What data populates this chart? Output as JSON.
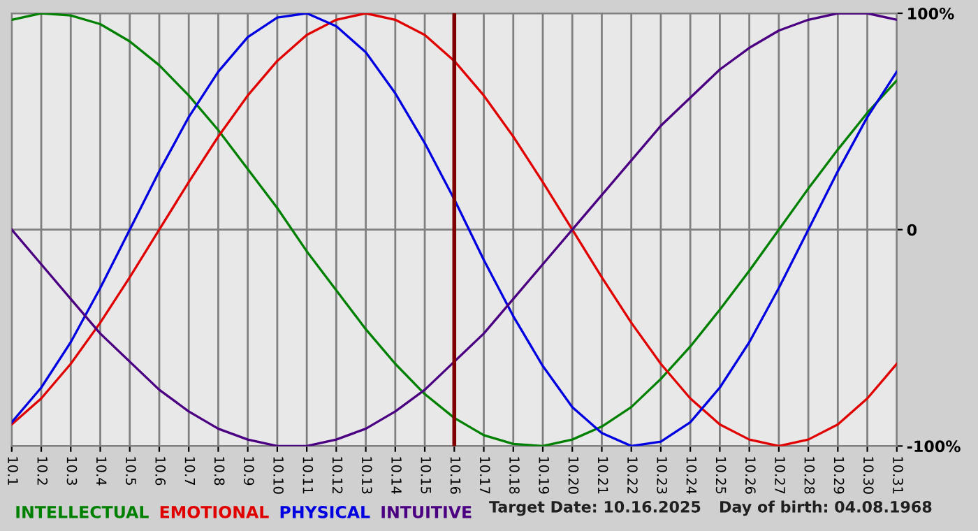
{
  "chart_data": {
    "type": "line",
    "categories": [
      "10.1",
      "10.2",
      "10.3",
      "10.4",
      "10.5",
      "10.6",
      "10.7",
      "10.8",
      "10.9",
      "10.10",
      "10.11",
      "10.12",
      "10.13",
      "10.14",
      "10.15",
      "10.16",
      "10.17",
      "10.18",
      "10.19",
      "10.20",
      "10.21",
      "10.22",
      "10.23",
      "10.24",
      "10.25",
      "10.26",
      "10.27",
      "10.28",
      "10.29",
      "10.30",
      "10.31"
    ],
    "series": [
      {
        "name": "INTELLECTUAL",
        "color": "#008000",
        "values": [
          97,
          100,
          99,
          95,
          87,
          76,
          62,
          46,
          28,
          10,
          -10,
          -28,
          -46,
          -62,
          -76,
          -87,
          -95,
          -99,
          -100,
          -97,
          -91,
          -82,
          -69,
          -54,
          -37,
          -19,
          0,
          19,
          37,
          54,
          69
        ]
      },
      {
        "name": "EMOTIONAL",
        "color": "#e00000",
        "values": [
          -90,
          -78,
          -62,
          -43,
          -22,
          0,
          22,
          43,
          62,
          78,
          90,
          97,
          100,
          97,
          90,
          78,
          62,
          43,
          22,
          0,
          -22,
          -43,
          -62,
          -78,
          -90,
          -97,
          -100,
          -97,
          -90,
          -78,
          -62
        ]
      },
      {
        "name": "PHYSICAL",
        "color": "#0000e0",
        "values": [
          -89,
          -73,
          -52,
          -27,
          0,
          27,
          52,
          73,
          89,
          98,
          100,
          94,
          82,
          63,
          40,
          14,
          -14,
          -40,
          -63,
          -82,
          -94,
          -100,
          -98,
          -89,
          -73,
          -52,
          -27,
          0,
          27,
          52,
          73
        ]
      },
      {
        "name": "INTUITIVE",
        "color": "#4b0082",
        "values": [
          0,
          -16,
          -32,
          -48,
          -61,
          -74,
          -84,
          -92,
          -97,
          -100,
          -100,
          -97,
          -92,
          -84,
          -74,
          -61,
          -48,
          -32,
          -16,
          0,
          16,
          32,
          48,
          61,
          74,
          84,
          92,
          97,
          100,
          100,
          97
        ]
      }
    ],
    "ylim": [
      -100,
      100
    ],
    "yticks": [
      {
        "value": -100,
        "label": "-100%"
      },
      0,
      {
        "value": 100,
        "label": "100%"
      }
    ],
    "ref_lines": [
      {
        "axis": "x",
        "value": "10.16",
        "color": "#800000"
      }
    ],
    "annotations": [
      "Target Date: 10.16.2025",
      "Day of birth: 04.08.1968"
    ],
    "grid": true,
    "legend": "bottom",
    "marker": "none",
    "line_style": "solid"
  }
}
